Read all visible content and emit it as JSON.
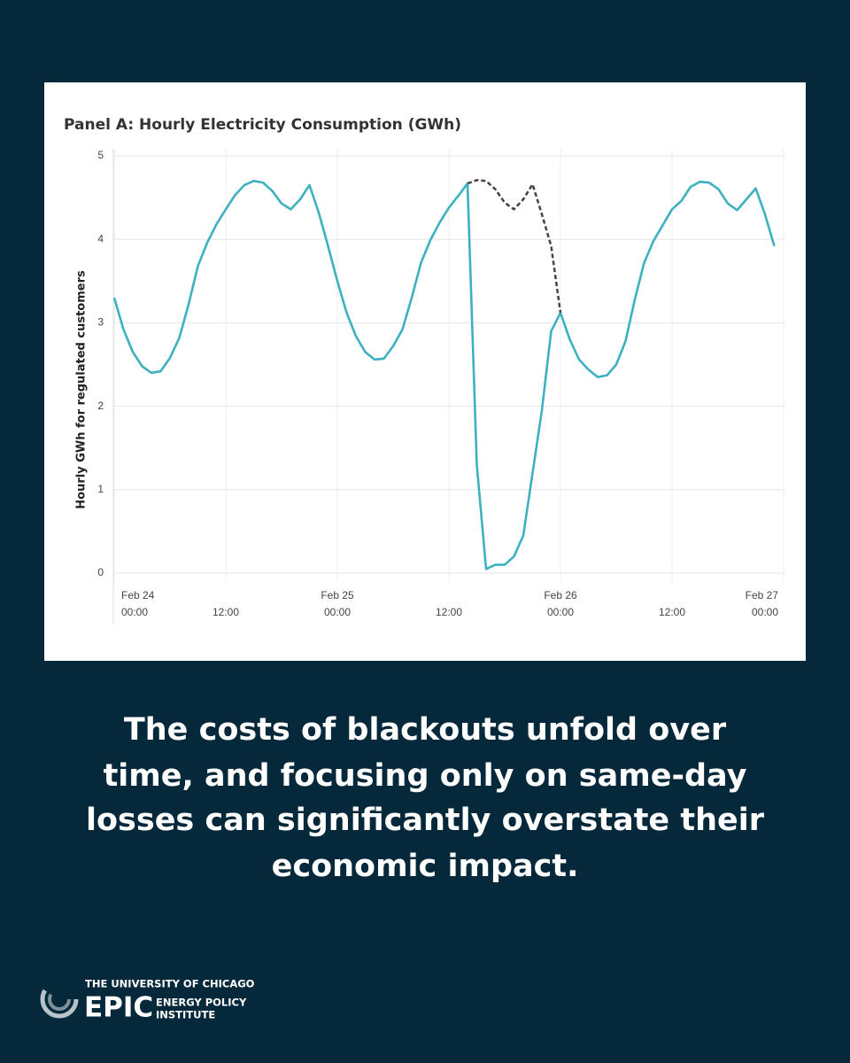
{
  "chart_data": {
    "type": "line",
    "title": "Panel A: Hourly Electricity Consumption (GWh)",
    "ylabel": "Hourly GWh for regulated customers",
    "x": [
      "Feb 24 00:00",
      "Feb 24 01:00",
      "Feb 24 02:00",
      "Feb 24 03:00",
      "Feb 24 04:00",
      "Feb 24 05:00",
      "Feb 24 06:00",
      "Feb 24 07:00",
      "Feb 24 08:00",
      "Feb 24 09:00",
      "Feb 24 10:00",
      "Feb 24 11:00",
      "Feb 24 12:00",
      "Feb 24 13:00",
      "Feb 24 14:00",
      "Feb 24 15:00",
      "Feb 24 16:00",
      "Feb 24 17:00",
      "Feb 24 18:00",
      "Feb 24 19:00",
      "Feb 24 20:00",
      "Feb 24 21:00",
      "Feb 24 22:00",
      "Feb 24 23:00",
      "Feb 25 00:00",
      "Feb 25 01:00",
      "Feb 25 02:00",
      "Feb 25 03:00",
      "Feb 25 04:00",
      "Feb 25 05:00",
      "Feb 25 06:00",
      "Feb 25 07:00",
      "Feb 25 08:00",
      "Feb 25 09:00",
      "Feb 25 10:00",
      "Feb 25 11:00",
      "Feb 25 12:00",
      "Feb 25 13:00",
      "Feb 25 14:00",
      "Feb 25 15:00",
      "Feb 25 16:00",
      "Feb 25 17:00",
      "Feb 25 18:00",
      "Feb 25 19:00",
      "Feb 25 20:00",
      "Feb 25 21:00",
      "Feb 25 22:00",
      "Feb 25 23:00",
      "Feb 26 00:00",
      "Feb 26 01:00",
      "Feb 26 02:00",
      "Feb 26 03:00",
      "Feb 26 04:00",
      "Feb 26 05:00",
      "Feb 26 06:00",
      "Feb 26 07:00",
      "Feb 26 08:00",
      "Feb 26 09:00",
      "Feb 26 10:00",
      "Feb 26 11:00",
      "Feb 26 12:00",
      "Feb 26 13:00",
      "Feb 26 14:00",
      "Feb 26 15:00",
      "Feb 26 16:00",
      "Feb 26 17:00",
      "Feb 26 18:00",
      "Feb 26 19:00",
      "Feb 26 20:00",
      "Feb 26 21:00",
      "Feb 26 22:00",
      "Feb 26 23:00"
    ],
    "xlim": [
      "Feb 24 00:00",
      "Feb 27 00:00"
    ],
    "xticks": [
      {
        "value": "Feb 24 00:00",
        "label": [
          "Feb 24",
          "00:00"
        ]
      },
      {
        "value": "Feb 24 12:00",
        "label": "12:00"
      },
      {
        "value": "Feb 25 00:00",
        "label": [
          "Feb 25",
          "00:00"
        ]
      },
      {
        "value": "Feb 25 12:00",
        "label": "12:00"
      },
      {
        "value": "Feb 26 00:00",
        "label": [
          "Feb 26",
          "00:00"
        ]
      },
      {
        "value": "Feb 26 12:00",
        "label": "12:00"
      },
      {
        "value": "Feb 27 00:00",
        "label": [
          "Feb 27",
          "00:00"
        ]
      }
    ],
    "ylim": [
      0,
      5
    ],
    "yticks": [
      0,
      1,
      2,
      3,
      4,
      5
    ],
    "grid": true,
    "series": [
      {
        "color": "#3eb1c0",
        "dashed": false,
        "values": [
          3.3,
          2.92,
          2.65,
          2.48,
          2.4,
          2.42,
          2.58,
          2.82,
          3.22,
          3.68,
          3.96,
          4.18,
          4.36,
          4.53,
          4.65,
          4.7,
          4.68,
          4.58,
          4.43,
          4.36,
          4.48,
          4.65,
          4.32,
          3.92,
          3.5,
          3.12,
          2.84,
          2.65,
          2.56,
          2.57,
          2.72,
          2.92,
          3.3,
          3.72,
          3.99,
          4.2,
          4.38,
          4.52,
          4.67,
          1.3,
          0.05,
          0.1,
          0.1,
          0.2,
          0.45,
          1.2,
          1.95,
          2.9,
          3.12,
          2.8,
          2.56,
          2.44,
          2.35,
          2.37,
          2.5,
          2.78,
          3.28,
          3.72,
          3.98,
          4.17,
          4.36,
          4.46,
          4.63,
          4.69,
          4.68,
          4.6,
          4.43,
          4.35,
          4.48,
          4.61,
          4.3,
          3.92
        ]
      },
      {
        "color": "#444444",
        "dashed": true,
        "values": [
          null,
          null,
          null,
          null,
          null,
          null,
          null,
          null,
          null,
          null,
          null,
          null,
          null,
          null,
          null,
          null,
          null,
          null,
          null,
          null,
          null,
          null,
          null,
          null,
          null,
          null,
          null,
          null,
          null,
          null,
          null,
          null,
          null,
          null,
          null,
          null,
          null,
          null,
          4.67,
          4.71,
          4.7,
          4.6,
          4.44,
          4.36,
          4.48,
          4.66,
          4.3,
          3.92,
          3.12,
          null,
          null,
          null,
          null,
          null,
          null,
          null,
          null,
          null,
          null,
          null,
          null,
          null,
          null,
          null,
          null,
          null,
          null,
          null,
          null,
          null,
          null,
          null
        ]
      }
    ]
  },
  "caption": [
    "The costs of blackouts unfold over",
    "time, and focusing only on same-day",
    "losses can significantly overstate their",
    "economic impact."
  ],
  "logo": {
    "university": "THE UNIVERSITY OF CHICAGO",
    "name": "EPIC",
    "line1": "ENERGY POLICY",
    "line2": "INSTITUTE"
  }
}
